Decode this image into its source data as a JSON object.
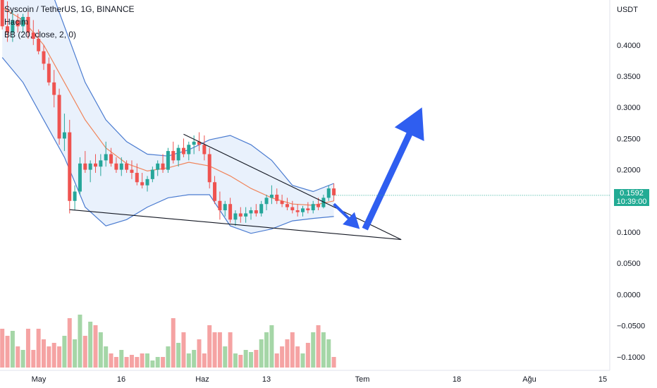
{
  "legend": {
    "title": "Syscoin / TetherUS, 1G, BINANCE",
    "volume": "Hacim",
    "bb": "BB (20, close, 2, 0)"
  },
  "price_axis": {
    "currency": "USDT",
    "ticks": [
      "0.4000",
      "0.3500",
      "0.3000",
      "0.2500",
      "0.2000",
      "0.1500",
      "0.1000",
      "0.0500",
      "0.0000",
      "−0.0500",
      "−0.1000"
    ]
  },
  "time_axis": {
    "ticks": [
      "May",
      "16",
      "Haz",
      "13",
      "Tem",
      "18",
      "Ağu",
      "15"
    ]
  },
  "last_price": {
    "value": "0.1592",
    "countdown": "10:39:00"
  },
  "colors": {
    "up": "#26a69a",
    "down": "#ef5350",
    "vol_up": "#a5d6a7",
    "vol_down": "#f5a3a3",
    "bb_band": "#4a7bd0",
    "bb_fill": "#e3eefb",
    "bb_basis": "#f0845a",
    "arrow": "#2f5ef0",
    "last_price": "#22ab94"
  },
  "chart_data": {
    "type": "candlestick",
    "x_unit": "bar index (daily)",
    "y_range": [
      -0.1,
      0.42
    ],
    "candles": [
      [
        0.49,
        0.5,
        0.425,
        0.43
      ],
      [
        0.43,
        0.47,
        0.405,
        0.42
      ],
      [
        0.42,
        0.455,
        0.405,
        0.44
      ],
      [
        0.44,
        0.45,
        0.42,
        0.43
      ],
      [
        0.43,
        0.45,
        0.42,
        0.445
      ],
      [
        0.445,
        0.455,
        0.41,
        0.42
      ],
      [
        0.42,
        0.44,
        0.4,
        0.41
      ],
      [
        0.41,
        0.425,
        0.385,
        0.39
      ],
      [
        0.39,
        0.4,
        0.36,
        0.37
      ],
      [
        0.37,
        0.38,
        0.335,
        0.34
      ],
      [
        0.34,
        0.36,
        0.3,
        0.32
      ],
      [
        0.32,
        0.33,
        0.24,
        0.25
      ],
      [
        0.25,
        0.29,
        0.23,
        0.26
      ],
      [
        0.26,
        0.28,
        0.13,
        0.15
      ],
      [
        0.15,
        0.175,
        0.135,
        0.165
      ],
      [
        0.165,
        0.22,
        0.16,
        0.21
      ],
      [
        0.21,
        0.23,
        0.195,
        0.2
      ],
      [
        0.2,
        0.215,
        0.18,
        0.21
      ],
      [
        0.21,
        0.225,
        0.195,
        0.205
      ],
      [
        0.205,
        0.225,
        0.19,
        0.215
      ],
      [
        0.215,
        0.245,
        0.205,
        0.225
      ],
      [
        0.225,
        0.235,
        0.205,
        0.21
      ],
      [
        0.21,
        0.22,
        0.195,
        0.2
      ],
      [
        0.2,
        0.22,
        0.19,
        0.21
      ],
      [
        0.21,
        0.215,
        0.195,
        0.2
      ],
      [
        0.2,
        0.215,
        0.185,
        0.195
      ],
      [
        0.195,
        0.21,
        0.175,
        0.18
      ],
      [
        0.18,
        0.195,
        0.17,
        0.175
      ],
      [
        0.175,
        0.19,
        0.165,
        0.185
      ],
      [
        0.185,
        0.205,
        0.18,
        0.2
      ],
      [
        0.2,
        0.215,
        0.19,
        0.21
      ],
      [
        0.21,
        0.225,
        0.195,
        0.2
      ],
      [
        0.2,
        0.235,
        0.195,
        0.23
      ],
      [
        0.23,
        0.245,
        0.21,
        0.215
      ],
      [
        0.215,
        0.24,
        0.205,
        0.235
      ],
      [
        0.235,
        0.25,
        0.22,
        0.225
      ],
      [
        0.225,
        0.245,
        0.215,
        0.24
      ],
      [
        0.24,
        0.255,
        0.225,
        0.245
      ],
      [
        0.245,
        0.26,
        0.23,
        0.24
      ],
      [
        0.24,
        0.255,
        0.215,
        0.225
      ],
      [
        0.225,
        0.235,
        0.17,
        0.18
      ],
      [
        0.18,
        0.19,
        0.145,
        0.15
      ],
      [
        0.15,
        0.165,
        0.12,
        0.135
      ],
      [
        0.135,
        0.15,
        0.125,
        0.145
      ],
      [
        0.145,
        0.155,
        0.115,
        0.12
      ],
      [
        0.12,
        0.135,
        0.11,
        0.13
      ],
      [
        0.13,
        0.14,
        0.115,
        0.125
      ],
      [
        0.125,
        0.14,
        0.115,
        0.13
      ],
      [
        0.13,
        0.14,
        0.12,
        0.135
      ],
      [
        0.135,
        0.145,
        0.125,
        0.13
      ],
      [
        0.13,
        0.15,
        0.125,
        0.145
      ],
      [
        0.145,
        0.16,
        0.135,
        0.155
      ],
      [
        0.155,
        0.175,
        0.145,
        0.16
      ],
      [
        0.16,
        0.17,
        0.145,
        0.15
      ],
      [
        0.15,
        0.16,
        0.14,
        0.145
      ],
      [
        0.145,
        0.155,
        0.135,
        0.14
      ],
      [
        0.14,
        0.15,
        0.13,
        0.135
      ],
      [
        0.135,
        0.145,
        0.125,
        0.132
      ],
      [
        0.132,
        0.142,
        0.125,
        0.138
      ],
      [
        0.138,
        0.148,
        0.13,
        0.135
      ],
      [
        0.135,
        0.15,
        0.13,
        0.145
      ],
      [
        0.145,
        0.155,
        0.135,
        0.14
      ],
      [
        0.14,
        0.16,
        0.138,
        0.155
      ],
      [
        0.155,
        0.175,
        0.15,
        0.17
      ],
      [
        0.17,
        0.178,
        0.15,
        0.159
      ]
    ],
    "volume_series": "Hacim (relative bar heights)",
    "bollinger": {
      "period": 20,
      "mult": 2,
      "upper": [
        [
          0,
          0.62
        ],
        [
          4,
          0.6
        ],
        [
          8,
          0.52
        ],
        [
          12,
          0.43
        ],
        [
          16,
          0.34
        ],
        [
          20,
          0.28
        ],
        [
          24,
          0.245
        ],
        [
          28,
          0.225
        ],
        [
          32,
          0.222
        ],
        [
          36,
          0.232
        ],
        [
          40,
          0.248
        ],
        [
          44,
          0.255
        ],
        [
          48,
          0.24
        ],
        [
          52,
          0.215
        ],
        [
          56,
          0.175
        ],
        [
          60,
          0.165
        ],
        [
          64,
          0.178
        ]
      ],
      "basis": [
        [
          0,
          0.46
        ],
        [
          4,
          0.44
        ],
        [
          8,
          0.4
        ],
        [
          12,
          0.34
        ],
        [
          16,
          0.28
        ],
        [
          20,
          0.235
        ],
        [
          24,
          0.21
        ],
        [
          28,
          0.198
        ],
        [
          32,
          0.203
        ],
        [
          36,
          0.212
        ],
        [
          40,
          0.206
        ],
        [
          44,
          0.19
        ],
        [
          48,
          0.17
        ],
        [
          52,
          0.155
        ],
        [
          56,
          0.145
        ],
        [
          60,
          0.143
        ],
        [
          64,
          0.15
        ]
      ],
      "lower": [
        [
          0,
          0.38
        ],
        [
          4,
          0.34
        ],
        [
          8,
          0.28
        ],
        [
          12,
          0.22
        ],
        [
          16,
          0.14
        ],
        [
          20,
          0.11
        ],
        [
          24,
          0.12
        ],
        [
          28,
          0.14
        ],
        [
          32,
          0.155
        ],
        [
          36,
          0.16
        ],
        [
          40,
          0.16
        ],
        [
          44,
          0.11
        ],
        [
          48,
          0.098
        ],
        [
          52,
          0.105
        ],
        [
          56,
          0.118
        ],
        [
          60,
          0.122
        ],
        [
          64,
          0.125
        ]
      ]
    },
    "annotations": {
      "wedge_upper": [
        [
          35,
          0.257
        ],
        [
          77,
          0.088
        ]
      ],
      "wedge_lower": [
        [
          13,
          0.136
        ],
        [
          77,
          0.088
        ]
      ],
      "arrow_down": [
        [
          64,
          0.145
        ],
        [
          69,
          0.105
        ]
      ],
      "arrow_up": [
        [
          70,
          0.105
        ],
        [
          81,
          0.3
        ]
      ]
    }
  }
}
